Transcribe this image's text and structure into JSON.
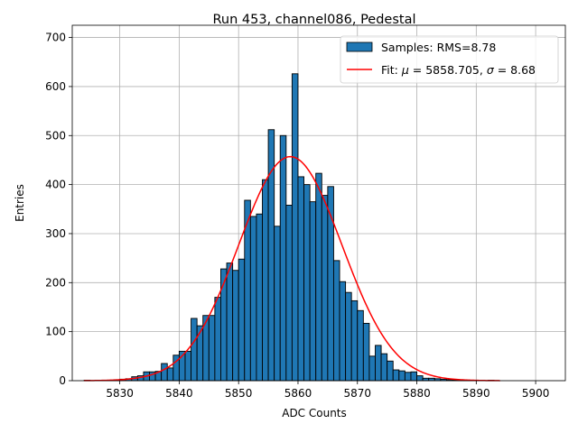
{
  "chart_data": {
    "type": "histogram",
    "title": "Run 453, channel086, Pedestal",
    "xlabel": "ADC Counts",
    "ylabel": "Entries",
    "xlim": [
      5822,
      5905
    ],
    "ylim": [
      0,
      725
    ],
    "xticks": [
      5830,
      5840,
      5850,
      5860,
      5870,
      5880,
      5890,
      5900
    ],
    "yticks": [
      0,
      100,
      200,
      300,
      400,
      500,
      600,
      700
    ],
    "grid": true,
    "legend_position": "top-right",
    "bin_width": 1,
    "bins": [
      {
        "x": 5824,
        "count": 1
      },
      {
        "x": 5825,
        "count": 0
      },
      {
        "x": 5826,
        "count": 1
      },
      {
        "x": 5827,
        "count": 1
      },
      {
        "x": 5828,
        "count": 1
      },
      {
        "x": 5829,
        "count": 2
      },
      {
        "x": 5830,
        "count": 3
      },
      {
        "x": 5831,
        "count": 4
      },
      {
        "x": 5832,
        "count": 8
      },
      {
        "x": 5833,
        "count": 10
      },
      {
        "x": 5834,
        "count": 18
      },
      {
        "x": 5835,
        "count": 18
      },
      {
        "x": 5836,
        "count": 19
      },
      {
        "x": 5837,
        "count": 35
      },
      {
        "x": 5838,
        "count": 26
      },
      {
        "x": 5839,
        "count": 52
      },
      {
        "x": 5840,
        "count": 60
      },
      {
        "x": 5841,
        "count": 60
      },
      {
        "x": 5842,
        "count": 127
      },
      {
        "x": 5843,
        "count": 112
      },
      {
        "x": 5844,
        "count": 133
      },
      {
        "x": 5845,
        "count": 133
      },
      {
        "x": 5846,
        "count": 170
      },
      {
        "x": 5847,
        "count": 228
      },
      {
        "x": 5848,
        "count": 240
      },
      {
        "x": 5849,
        "count": 225
      },
      {
        "x": 5850,
        "count": 248
      },
      {
        "x": 5851,
        "count": 368
      },
      {
        "x": 5852,
        "count": 335
      },
      {
        "x": 5853,
        "count": 340
      },
      {
        "x": 5854,
        "count": 410
      },
      {
        "x": 5855,
        "count": 512
      },
      {
        "x": 5856,
        "count": 315
      },
      {
        "x": 5857,
        "count": 500
      },
      {
        "x": 5858,
        "count": 358
      },
      {
        "x": 5859,
        "count": 626
      },
      {
        "x": 5860,
        "count": 416
      },
      {
        "x": 5861,
        "count": 400
      },
      {
        "x": 5862,
        "count": 365
      },
      {
        "x": 5863,
        "count": 423
      },
      {
        "x": 5864,
        "count": 378
      },
      {
        "x": 5865,
        "count": 396
      },
      {
        "x": 5866,
        "count": 245
      },
      {
        "x": 5867,
        "count": 202
      },
      {
        "x": 5868,
        "count": 180
      },
      {
        "x": 5869,
        "count": 163
      },
      {
        "x": 5870,
        "count": 143
      },
      {
        "x": 5871,
        "count": 117
      },
      {
        "x": 5872,
        "count": 50
      },
      {
        "x": 5873,
        "count": 72
      },
      {
        "x": 5874,
        "count": 55
      },
      {
        "x": 5875,
        "count": 40
      },
      {
        "x": 5876,
        "count": 22
      },
      {
        "x": 5877,
        "count": 20
      },
      {
        "x": 5878,
        "count": 17
      },
      {
        "x": 5879,
        "count": 18
      },
      {
        "x": 5880,
        "count": 10
      },
      {
        "x": 5881,
        "count": 5
      },
      {
        "x": 5882,
        "count": 5
      },
      {
        "x": 5883,
        "count": 4
      },
      {
        "x": 5884,
        "count": 3
      },
      {
        "x": 5885,
        "count": 2
      },
      {
        "x": 5886,
        "count": 1
      },
      {
        "x": 5887,
        "count": 1
      },
      {
        "x": 5888,
        "count": 1
      },
      {
        "x": 5889,
        "count": 1
      },
      {
        "x": 5890,
        "count": 1
      },
      {
        "x": 5891,
        "count": 0
      },
      {
        "x": 5892,
        "count": 1
      }
    ],
    "fit": {
      "label": "Fit: μ = 5858.705, σ = 8.68",
      "mu": 5858.705,
      "sigma": 8.68,
      "amplitude": 457,
      "x_range": [
        5824,
        5894
      ],
      "color": "#ff0000"
    },
    "series": [
      {
        "name": "Samples: RMS=8.78",
        "type": "bar",
        "color": "#1f77b4",
        "edge_color": "#000000"
      },
      {
        "name": "Fit: μ = 5858.705, σ = 8.68",
        "type": "line",
        "color": "#ff0000"
      }
    ]
  },
  "legend": {
    "samples_label": "Samples: RMS=8.78",
    "fit_prefix": "Fit: ",
    "fit_mu_symbol": "μ",
    "fit_mu_value": " = 5858.705, ",
    "fit_sigma_symbol": "σ",
    "fit_sigma_value": " = 8.68"
  }
}
